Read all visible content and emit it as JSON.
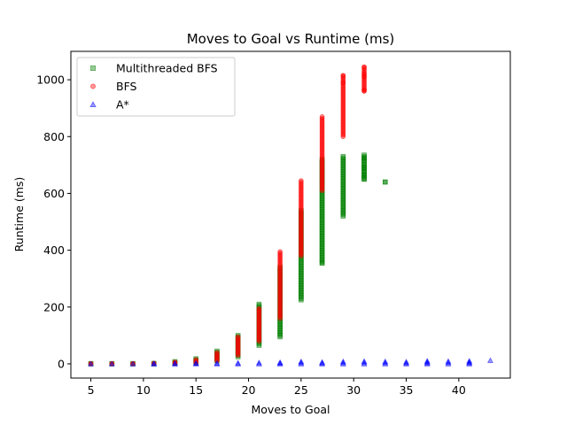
{
  "chart_data": {
    "type": "scatter",
    "title": "Moves to Goal vs Runtime (ms)",
    "xlabel": "Moves to Goal",
    "ylabel": "Runtime (ms)",
    "xlim": [
      3.1,
      44.9
    ],
    "ylim": [
      -50,
      1100
    ],
    "xticks": [
      5,
      10,
      15,
      20,
      25,
      30,
      35,
      40
    ],
    "yticks": [
      0,
      200,
      400,
      600,
      800,
      1000
    ],
    "grid": false,
    "legend_position": "upper-left",
    "series": [
      {
        "name": "Multithreaded BFS",
        "color": "#008000",
        "marker": "square",
        "points": [
          {
            "x": 5,
            "min": 0,
            "max": 1
          },
          {
            "x": 7,
            "min": 0,
            "max": 1
          },
          {
            "x": 9,
            "min": 0,
            "max": 1
          },
          {
            "x": 11,
            "min": 0,
            "max": 2
          },
          {
            "x": 13,
            "min": 1,
            "max": 8
          },
          {
            "x": 15,
            "min": 3,
            "max": 18
          },
          {
            "x": 17,
            "min": 10,
            "max": 45
          },
          {
            "x": 19,
            "min": 25,
            "max": 100
          },
          {
            "x": 21,
            "min": 65,
            "max": 210
          },
          {
            "x": 23,
            "min": 95,
            "max": 340
          },
          {
            "x": 25,
            "min": 225,
            "max": 540
          },
          {
            "x": 27,
            "min": 355,
            "max": 720
          },
          {
            "x": 29,
            "min": 520,
            "max": 730
          },
          {
            "x": 31,
            "min": 650,
            "max": 735
          },
          {
            "x": 33,
            "min": 640,
            "max": 640
          }
        ],
        "outliers": [
          {
            "x": 27,
            "y": 355
          },
          {
            "x": 31,
            "y": 725
          },
          {
            "x": 31,
            "y": 690
          },
          {
            "x": 31,
            "y": 665
          },
          {
            "x": 31,
            "y": 650
          },
          {
            "x": 33,
            "y": 640
          }
        ]
      },
      {
        "name": "BFS",
        "color": "#ff0000",
        "marker": "circle",
        "points": [
          {
            "x": 5,
            "min": 0,
            "max": 1
          },
          {
            "x": 7,
            "min": 0,
            "max": 1
          },
          {
            "x": 9,
            "min": 0,
            "max": 1
          },
          {
            "x": 11,
            "min": 0,
            "max": 2
          },
          {
            "x": 13,
            "min": 1,
            "max": 6
          },
          {
            "x": 15,
            "min": 3,
            "max": 15
          },
          {
            "x": 17,
            "min": 10,
            "max": 40
          },
          {
            "x": 19,
            "min": 30,
            "max": 95
          },
          {
            "x": 21,
            "min": 80,
            "max": 195
          },
          {
            "x": 23,
            "min": 160,
            "max": 395
          },
          {
            "x": 25,
            "min": 380,
            "max": 645
          },
          {
            "x": 27,
            "min": 610,
            "max": 870
          },
          {
            "x": 29,
            "min": 800,
            "max": 1015
          },
          {
            "x": 31,
            "min": 960,
            "max": 1045
          }
        ],
        "outliers": [
          {
            "x": 29,
            "y": 1015
          },
          {
            "x": 29,
            "y": 990
          },
          {
            "x": 31,
            "y": 1045
          },
          {
            "x": 31,
            "y": 1020
          },
          {
            "x": 31,
            "y": 1010
          },
          {
            "x": 31,
            "y": 965
          },
          {
            "x": 31,
            "y": 960
          }
        ]
      },
      {
        "name": "A*",
        "color": "#0000ff",
        "marker": "triangle",
        "points": [
          {
            "x": 5,
            "min": 0,
            "max": 0
          },
          {
            "x": 7,
            "min": 0,
            "max": 0
          },
          {
            "x": 9,
            "min": 0,
            "max": 0
          },
          {
            "x": 11,
            "min": 0,
            "max": 1
          },
          {
            "x": 13,
            "min": 0,
            "max": 1
          },
          {
            "x": 15,
            "min": 0,
            "max": 2
          },
          {
            "x": 17,
            "min": 0,
            "max": 2
          },
          {
            "x": 19,
            "min": 0,
            "max": 3
          },
          {
            "x": 21,
            "min": 0,
            "max": 4
          },
          {
            "x": 23,
            "min": 0,
            "max": 5
          },
          {
            "x": 25,
            "min": 0,
            "max": 8
          },
          {
            "x": 27,
            "min": 0,
            "max": 6
          },
          {
            "x": 29,
            "min": 0,
            "max": 8
          },
          {
            "x": 31,
            "min": 0,
            "max": 9
          },
          {
            "x": 33,
            "min": 0,
            "max": 8
          },
          {
            "x": 35,
            "min": 0,
            "max": 7
          },
          {
            "x": 37,
            "min": 0,
            "max": 10
          },
          {
            "x": 39,
            "min": 0,
            "max": 9
          },
          {
            "x": 41,
            "min": 0,
            "max": 10
          },
          {
            "x": 43,
            "min": 12,
            "max": 12
          }
        ],
        "outliers": []
      }
    ]
  }
}
